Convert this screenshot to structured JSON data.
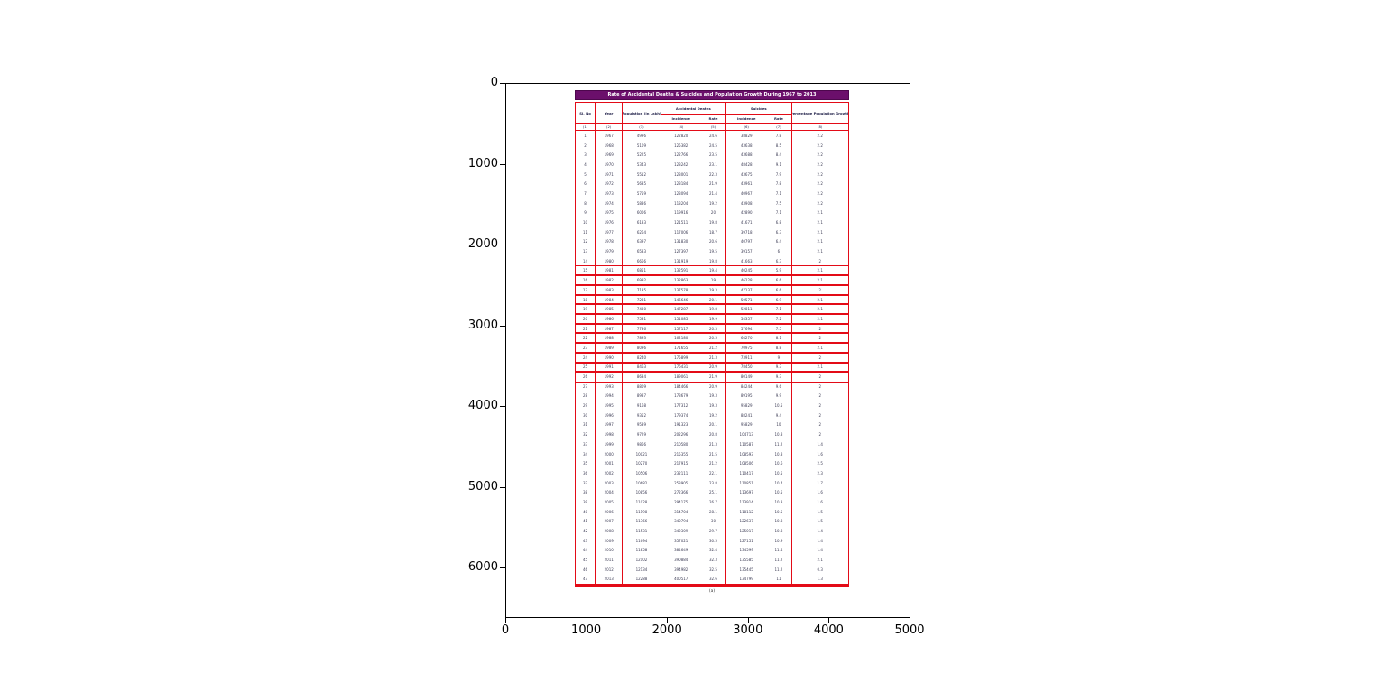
{
  "figure": {
    "x_ticks": [
      "0",
      "1000",
      "2000",
      "3000",
      "4000",
      "5000"
    ],
    "y_ticks": [
      "0",
      "1000",
      "2000",
      "3000",
      "4000",
      "5000",
      "6000"
    ]
  },
  "table": {
    "title": "Rate of Accidental Deaths & Suicides and Population Growth During 1967 to 2013",
    "caption": "(a)",
    "headers": {
      "sl_no": "Sl. No",
      "year": "Year",
      "population": "Population (in Lakh)",
      "accidental_deaths": "Accidental Deaths",
      "suicides": "Suicides",
      "incidence": "Incidence",
      "rate": "Rate",
      "growth": "Percentage Population Growth"
    },
    "col_numbers": [
      "(1)",
      "(2)",
      "(3)",
      "(4)",
      "(5)",
      "(6)",
      "(7)",
      "(8)"
    ],
    "highlight_rows": [
      15,
      16,
      17,
      18,
      19,
      20,
      21,
      22,
      23,
      24,
      25,
      26
    ],
    "colors": {
      "title_bg": "#6b0f6b",
      "border_red": "#e30b17",
      "header_text": "#24244c"
    }
  },
  "chart_data": {
    "type": "table",
    "title": "Rate of Accidental Deaths & Suicides and Population Growth During 1967 to 2013",
    "columns": [
      "Sl. No",
      "Year",
      "Population (in Lakh)",
      "Accidental Deaths Incidence",
      "Accidental Deaths Rate",
      "Suicides Incidence",
      "Suicides Rate",
      "Percentage Population Growth"
    ],
    "axis": {
      "x_range": [
        0,
        5000
      ],
      "y_range": [
        0,
        6000
      ],
      "grid": false
    },
    "rows": [
      [
        1,
        1967,
        4996,
        122820,
        24.6,
        38829,
        7.8,
        2.2
      ],
      [
        2,
        1968,
        5109,
        125382,
        24.5,
        43638,
        8.5,
        2.2
      ],
      [
        3,
        1969,
        5225,
        122766,
        23.5,
        43688,
        8.4,
        2.2
      ],
      [
        4,
        1970,
        5343,
        123242,
        23.1,
        48428,
        9.1,
        2.2
      ],
      [
        5,
        1971,
        5512,
        123001,
        22.3,
        43675,
        7.9,
        2.2
      ],
      [
        6,
        1972,
        5635,
        123184,
        21.9,
        43961,
        7.8,
        2.2
      ],
      [
        7,
        1973,
        5759,
        123094,
        21.4,
        40967,
        7.1,
        2.2
      ],
      [
        8,
        1974,
        5886,
        113204,
        19.2,
        43908,
        7.5,
        2.2
      ],
      [
        9,
        1975,
        6006,
        119916,
        20.0,
        42890,
        7.1,
        2.1
      ],
      [
        10,
        1976,
        6133,
        121511,
        19.8,
        41671,
        6.8,
        2.1
      ],
      [
        11,
        1977,
        6264,
        117006,
        18.7,
        39718,
        6.3,
        2.1
      ],
      [
        12,
        1978,
        6397,
        131830,
        20.6,
        40797,
        6.4,
        2.1
      ],
      [
        13,
        1979,
        6533,
        127397,
        19.5,
        39157,
        6.0,
        2.1
      ],
      [
        14,
        1980,
        6666,
        131919,
        19.8,
        41663,
        6.3,
        2.0
      ],
      [
        15,
        1981,
        6851,
        132591,
        19.4,
        40245,
        5.9,
        2.1
      ],
      [
        16,
        1982,
        6992,
        132863,
        19.0,
        46228,
        6.6,
        2.1
      ],
      [
        17,
        1983,
        7135,
        137578,
        19.3,
        47137,
        6.6,
        2.0
      ],
      [
        18,
        1984,
        7281,
        146646,
        20.1,
        50571,
        6.9,
        2.1
      ],
      [
        19,
        1985,
        7430,
        147287,
        19.8,
        52811,
        7.1,
        2.1
      ],
      [
        20,
        1986,
        7581,
        151085,
        19.9,
        54357,
        7.2,
        2.1
      ],
      [
        21,
        1987,
        7736,
        157117,
        20.3,
        57694,
        7.5,
        2.0
      ],
      [
        22,
        1988,
        7893,
        162180,
        20.5,
        64270,
        8.1,
        2.0
      ],
      [
        23,
        1989,
        8096,
        171655,
        21.2,
        70975,
        8.8,
        2.1
      ],
      [
        24,
        1990,
        8240,
        175899,
        21.3,
        73911,
        9.0,
        2.0
      ],
      [
        25,
        1991,
        8463,
        176431,
        20.9,
        78450,
        9.3,
        2.1
      ],
      [
        26,
        1992,
        8634,
        189061,
        21.9,
        80149,
        9.3,
        2.0
      ],
      [
        27,
        1993,
        8809,
        184466,
        20.9,
        84244,
        9.6,
        2.0
      ],
      [
        28,
        1994,
        8987,
        173679,
        19.3,
        89195,
        9.9,
        2.0
      ],
      [
        29,
        1995,
        9168,
        177312,
        19.3,
        95829,
        10.5,
        2.0
      ],
      [
        30,
        1996,
        9352,
        179374,
        19.2,
        88241,
        9.4,
        2.0
      ],
      [
        31,
        1997,
        9539,
        191323,
        20.1,
        95829,
        10.0,
        2.0
      ],
      [
        32,
        1998,
        9729,
        202296,
        20.8,
        104713,
        10.8,
        2.0
      ],
      [
        33,
        1999,
        9866,
        210580,
        21.3,
        110587,
        11.2,
        1.4
      ],
      [
        34,
        2000,
        10021,
        215355,
        21.5,
        108593,
        10.8,
        1.6
      ],
      [
        35,
        2001,
        10270,
        217915,
        21.2,
        108506,
        10.6,
        2.5
      ],
      [
        36,
        2002,
        10506,
        232111,
        22.1,
        110417,
        10.5,
        2.3
      ],
      [
        37,
        2003,
        10682,
        253905,
        23.8,
        110851,
        10.4,
        1.7
      ],
      [
        38,
        2004,
        10856,
        272366,
        25.1,
        113697,
        10.5,
        1.6
      ],
      [
        39,
        2005,
        11028,
        294175,
        26.7,
        113914,
        10.3,
        1.6
      ],
      [
        40,
        2006,
        11198,
        314704,
        28.1,
        118112,
        10.5,
        1.5
      ],
      [
        41,
        2007,
        11366,
        340794,
        30.0,
        122637,
        10.8,
        1.5
      ],
      [
        42,
        2008,
        11531,
        342309,
        29.7,
        125017,
        10.8,
        1.4
      ],
      [
        43,
        2009,
        11694,
        357021,
        30.5,
        127151,
        10.9,
        1.4
      ],
      [
        44,
        2010,
        11858,
        384649,
        32.4,
        134599,
        11.4,
        1.4
      ],
      [
        45,
        2011,
        12102,
        390884,
        32.3,
        135585,
        11.2,
        2.1
      ],
      [
        46,
        2012,
        12134,
        394982,
        32.5,
        135445,
        11.2,
        0.3
      ],
      [
        47,
        2013,
        12288,
        400517,
        32.6,
        134799,
        11.0,
        1.3
      ]
    ]
  }
}
